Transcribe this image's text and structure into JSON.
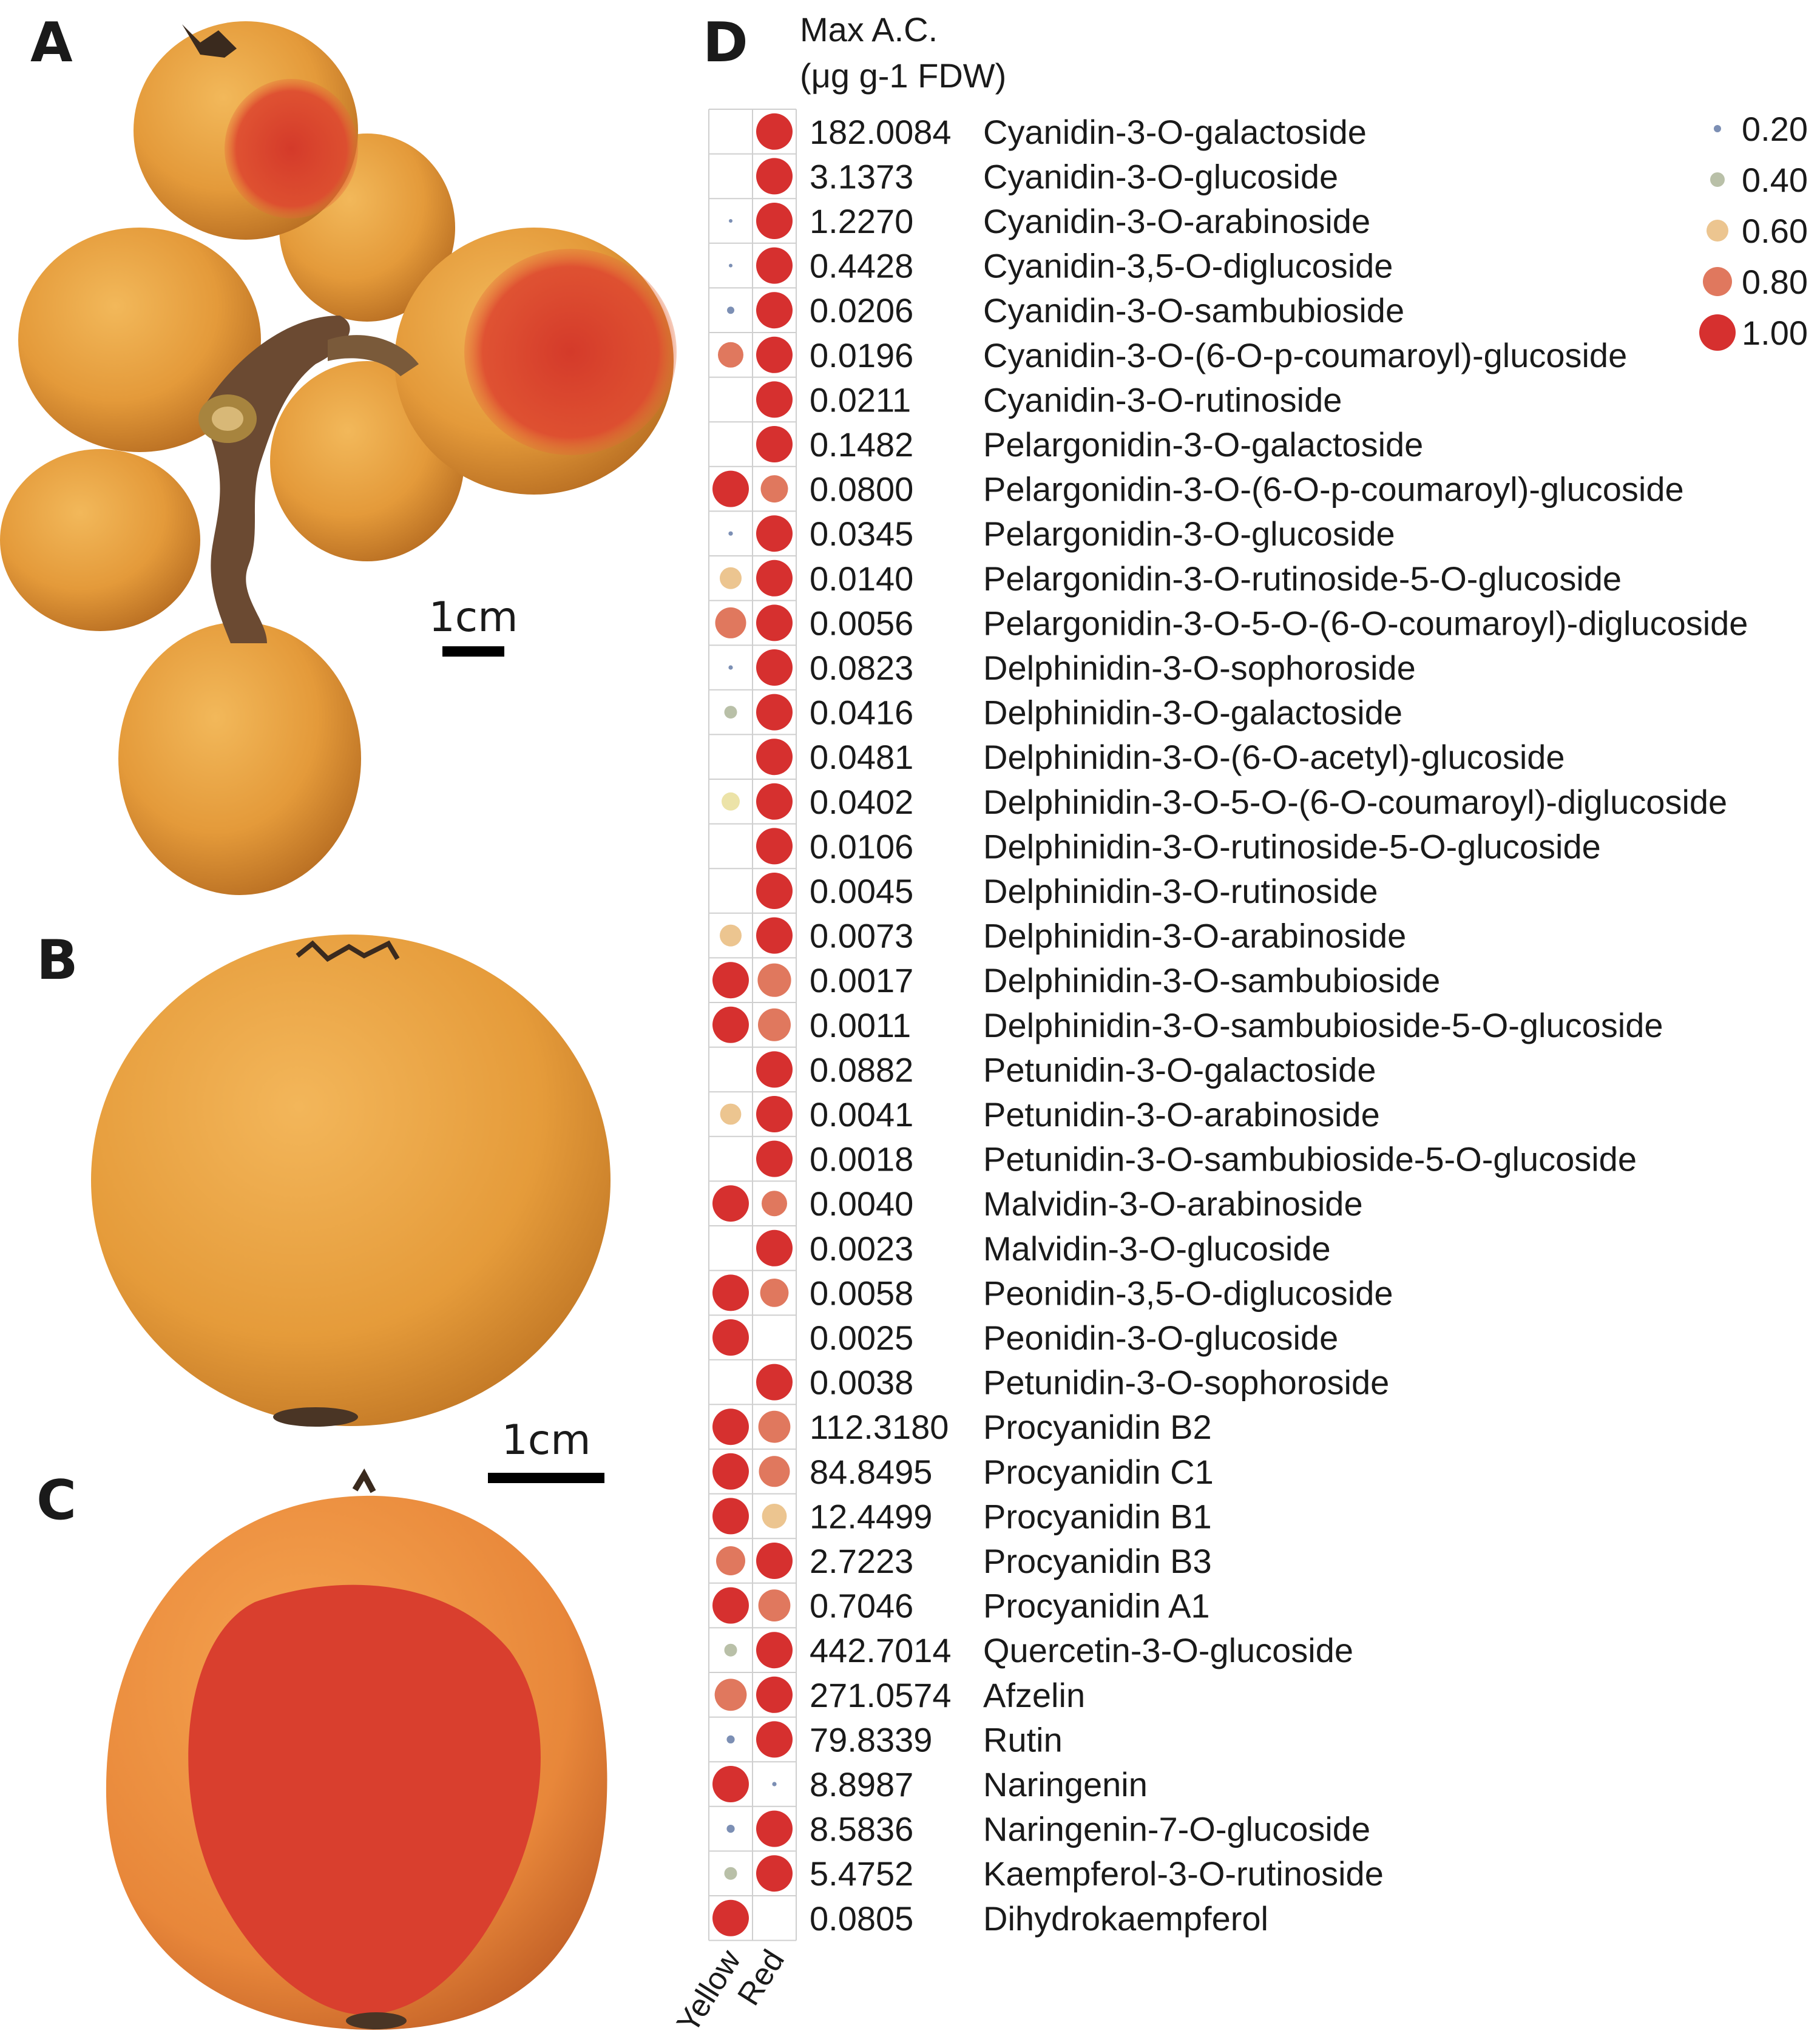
{
  "panels": {
    "a": "A",
    "b": "B",
    "c": "C",
    "d": "D"
  },
  "scale_bars": {
    "a": "1cm",
    "bc": "1cm"
  },
  "header": {
    "line1": "Max A.C.",
    "line2": "(μg g-1 FDW)"
  },
  "colors": {
    "0.20": "#7c8fb4",
    "0.40": "#b9c0a8",
    "0.50": "#ece3a8",
    "0.60": "#ecc590",
    "0.80": "#e0785e",
    "1.00": "#d6302f"
  },
  "chart_data": {
    "type": "dot-matrix",
    "columns": [
      "Yellow",
      "Red"
    ],
    "legend": [
      0.2,
      0.4,
      0.6,
      0.8,
      1.0
    ],
    "legend_labels": [
      "0.20",
      "0.40",
      "0.60",
      "0.80",
      "1.00"
    ],
    "rows": [
      {
        "name": "Cyanidin-3-O-galactoside",
        "max": "182.0084",
        "yellow": 0.0,
        "red": 1.0
      },
      {
        "name": "Cyanidin-3-O-glucoside",
        "max": "3.1373",
        "yellow": 0.0,
        "red": 1.0
      },
      {
        "name": "Cyanidin-3-O-arabinoside",
        "max": "1.2270",
        "yellow": 0.02,
        "red": 1.0
      },
      {
        "name": "Cyanidin-3,5-O-diglucoside",
        "max": "0.4428",
        "yellow": 0.01,
        "red": 1.0
      },
      {
        "name": "Cyanidin-3-O-sambubioside",
        "max": "0.0206",
        "yellow": 0.2,
        "red": 1.0
      },
      {
        "name": "Cyanidin-3-O-(6-O-p-coumaroyl)-glucoside",
        "max": "0.0196",
        "yellow": 0.7,
        "red": 1.0
      },
      {
        "name": "Cyanidin-3-O-rutinoside",
        "max": "0.0211",
        "yellow": 0.0,
        "red": 1.0
      },
      {
        "name": "Pelargonidin-3-O-galactoside",
        "max": "0.1482",
        "yellow": 0.0,
        "red": 1.0
      },
      {
        "name": "Pelargonidin-3-O-(6-O-p-coumaroyl)-glucoside",
        "max": "0.0800",
        "yellow": 1.0,
        "red": 0.75
      },
      {
        "name": "Pelargonidin-3-O-glucoside",
        "max": "0.0345",
        "yellow": 0.12,
        "red": 1.0
      },
      {
        "name": "Pelargonidin-3-O-rutinoside-5-O-glucoside",
        "max": "0.0140",
        "yellow": 0.6,
        "red": 1.0
      },
      {
        "name": "Pelargonidin-3-O-5-O-(6-O-coumaroyl)-diglucoside",
        "max": "0.0056",
        "yellow": 0.85,
        "red": 1.0
      },
      {
        "name": "Delphinidin-3-O-sophoroside",
        "max": "0.0823",
        "yellow": 0.12,
        "red": 1.0
      },
      {
        "name": "Delphinidin-3-O-galactoside",
        "max": "0.0416",
        "yellow": 0.35,
        "red": 1.0
      },
      {
        "name": "Delphinidin-3-O-(6-O-acetyl)-glucoside",
        "max": "0.0481",
        "yellow": 0.0,
        "red": 1.0
      },
      {
        "name": "Delphinidin-3-O-5-O-(6-O-coumaroyl)-diglucoside",
        "max": "0.0402",
        "yellow": 0.5,
        "red": 1.0
      },
      {
        "name": "Delphinidin-3-O-rutinoside-5-O-glucoside",
        "max": "0.0106",
        "yellow": 0.0,
        "red": 1.0
      },
      {
        "name": "Delphinidin-3-O-rutinoside",
        "max": "0.0045",
        "yellow": 0.0,
        "red": 1.0
      },
      {
        "name": "Delphinidin-3-O-arabinoside",
        "max": "0.0073",
        "yellow": 0.6,
        "red": 1.0
      },
      {
        "name": "Delphinidin-3-O-sambubioside",
        "max": "0.0017",
        "yellow": 1.0,
        "red": 0.92
      },
      {
        "name": "Delphinidin-3-O-sambubioside-5-O-glucoside",
        "max": "0.0011",
        "yellow": 1.0,
        "red": 0.9
      },
      {
        "name": "Petunidin-3-O-galactoside",
        "max": "0.0882",
        "yellow": 0.0,
        "red": 1.0
      },
      {
        "name": "Petunidin-3-O-arabinoside",
        "max": "0.0041",
        "yellow": 0.58,
        "red": 1.0
      },
      {
        "name": "Petunidin-3-O-sambubioside-5-O-glucoside",
        "max": "0.0018",
        "yellow": 0.0,
        "red": 1.0
      },
      {
        "name": "Malvidin-3-O-arabinoside",
        "max": "0.0040",
        "yellow": 1.0,
        "red": 0.7
      },
      {
        "name": "Malvidin-3-O-glucoside",
        "max": "0.0023",
        "yellow": 0.0,
        "red": 1.0
      },
      {
        "name": "Peonidin-3,5-O-diglucoside",
        "max": "0.0058",
        "yellow": 1.0,
        "red": 0.78
      },
      {
        "name": "Peonidin-3-O-glucoside",
        "max": "0.0025",
        "yellow": 1.0,
        "red": 0.0
      },
      {
        "name": "Petunidin-3-O-sophoroside",
        "max": "0.0038",
        "yellow": 0.0,
        "red": 1.0
      },
      {
        "name": "Procyanidin B2",
        "max": "112.3180",
        "yellow": 1.0,
        "red": 0.88
      },
      {
        "name": "Procyanidin C1",
        "max": "84.8495",
        "yellow": 1.0,
        "red": 0.85
      },
      {
        "name": "Procyanidin B1",
        "max": "12.4499",
        "yellow": 1.0,
        "red": 0.68
      },
      {
        "name": "Procyanidin B3",
        "max": "2.7223",
        "yellow": 0.8,
        "red": 1.0
      },
      {
        "name": "Procyanidin A1",
        "max": "0.7046",
        "yellow": 1.0,
        "red": 0.88
      },
      {
        "name": "Quercetin-3-O-glucoside",
        "max": "442.7014",
        "yellow": 0.35,
        "red": 1.0
      },
      {
        "name": "Afzelin",
        "max": "271.0574",
        "yellow": 0.88,
        "red": 1.0
      },
      {
        "name": "Rutin",
        "max": "79.8339",
        "yellow": 0.22,
        "red": 1.0
      },
      {
        "name": "Naringenin",
        "max": "8.8987",
        "yellow": 1.0,
        "red": 0.12
      },
      {
        "name": "Naringenin-7-O-glucoside",
        "max": "8.5836",
        "yellow": 0.22,
        "red": 1.0
      },
      {
        "name": "Kaempferol-3-O-rutinoside",
        "max": "5.4752",
        "yellow": 0.35,
        "red": 1.0
      },
      {
        "name": "Dihydrokaempferol",
        "max": "0.0805",
        "yellow": 1.0,
        "red": 0.0
      }
    ]
  }
}
